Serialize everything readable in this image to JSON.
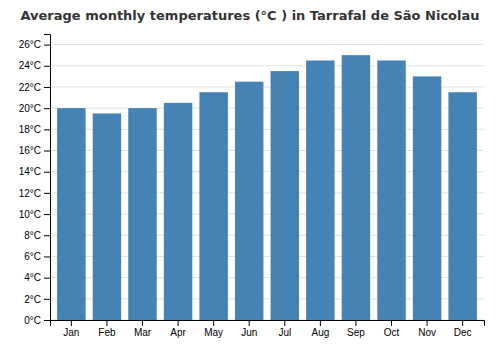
{
  "chart_data": {
    "type": "bar",
    "title": "Average monthly temperatures (°C ) in Tarrafal de São Nicolau",
    "categories": [
      "Jan",
      "Feb",
      "Mar",
      "Apr",
      "May",
      "Jun",
      "Jul",
      "Aug",
      "Sep",
      "Oct",
      "Nov",
      "Dec"
    ],
    "values": [
      20.0,
      19.5,
      20.0,
      20.5,
      21.5,
      22.5,
      23.5,
      24.5,
      25.0,
      24.5,
      23.0,
      21.5
    ],
    "ylim": [
      0,
      27
    ],
    "yticks": [
      {
        "value": 0,
        "label": "0°C"
      },
      {
        "value": 2,
        "label": "2°C"
      },
      {
        "value": 4,
        "label": "4°C"
      },
      {
        "value": 6,
        "label": "6°C"
      },
      {
        "value": 8,
        "label": "8°C"
      },
      {
        "value": 10,
        "label": "10°C"
      },
      {
        "value": 12,
        "label": "12°C"
      },
      {
        "value": 14,
        "label": "14°C"
      },
      {
        "value": 16,
        "label": "16°C"
      },
      {
        "value": 18,
        "label": "18°C"
      },
      {
        "value": 20,
        "label": "20°C"
      },
      {
        "value": 22,
        "label": "22°C"
      },
      {
        "value": 24,
        "label": "24°C"
      },
      {
        "value": 26,
        "label": "26°C"
      }
    ],
    "grid": true
  }
}
